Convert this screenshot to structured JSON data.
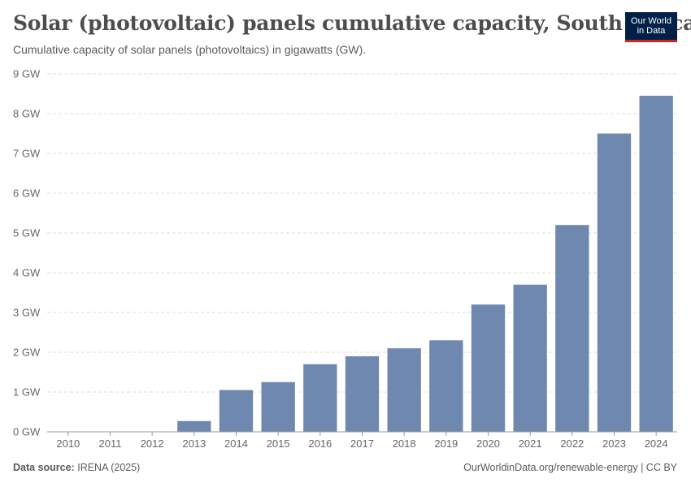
{
  "header": {
    "title": "Solar (photovoltaic) panels cumulative capacity, South Africa",
    "subtitle": "Cumulative capacity of solar panels (photovoltaics) in gigawatts (GW).",
    "logo_line1": "Our World",
    "logo_line2": "in Data"
  },
  "footer": {
    "source_label": "Data source:",
    "source_value": "IRENA (2025)",
    "url": "OurWorldinData.org/renewable-energy | CC BY"
  },
  "colors": {
    "bar": "#6f88b0",
    "grid": "#dddddd",
    "axis": "#999999"
  },
  "chart_data": {
    "type": "bar",
    "title": "Solar (photovoltaic) panels cumulative capacity, South Africa",
    "xlabel": "",
    "ylabel": "",
    "unit_suffix": " GW",
    "ylim": [
      0,
      9
    ],
    "yticks": [
      0,
      1,
      2,
      3,
      4,
      5,
      6,
      7,
      8,
      9
    ],
    "grid": true,
    "categories": [
      "2010",
      "2011",
      "2012",
      "2013",
      "2014",
      "2015",
      "2016",
      "2017",
      "2018",
      "2019",
      "2020",
      "2021",
      "2022",
      "2023",
      "2024"
    ],
    "values": [
      0.003,
      0.005,
      0.01,
      0.27,
      1.05,
      1.25,
      1.7,
      1.9,
      2.1,
      2.3,
      3.2,
      3.7,
      5.2,
      7.5,
      8.45
    ]
  }
}
